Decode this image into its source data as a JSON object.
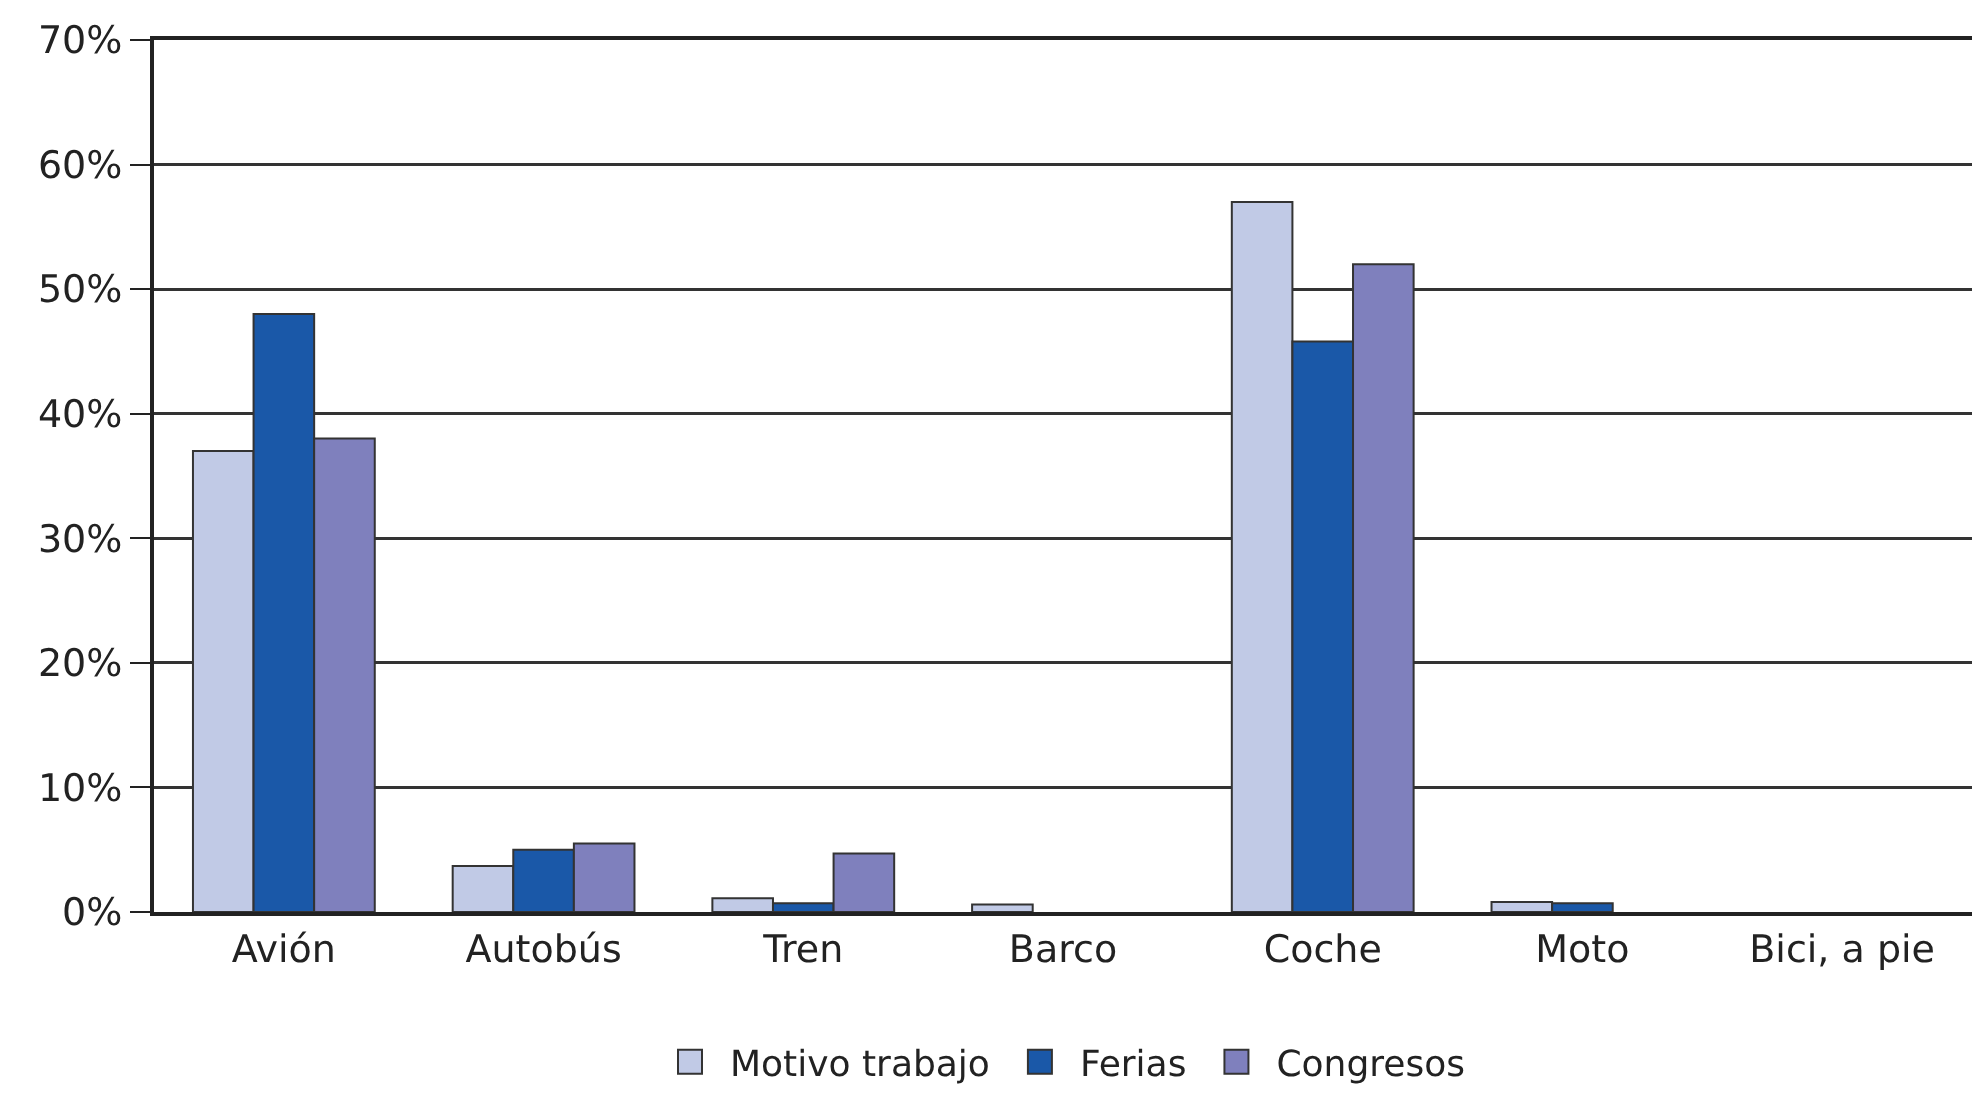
{
  "chart_data": {
    "type": "bar",
    "categories": [
      "Avión",
      "Autobús",
      "Tren",
      "Barco",
      "Coche",
      "Moto",
      "Bici, a pie"
    ],
    "series": [
      {
        "name": "Motivo trabajo",
        "color": "#c1cae6",
        "values": [
          37,
          3.7,
          1.1,
          0.6,
          57,
          0.8,
          0
        ]
      },
      {
        "name": "Ferias",
        "color": "#1a58a8",
        "values": [
          48,
          5,
          0.7,
          0,
          45.8,
          0.7,
          0
        ]
      },
      {
        "name": "Congresos",
        "color": "#7f80bd",
        "values": [
          38,
          5.5,
          4.7,
          0,
          52,
          0,
          0
        ]
      }
    ],
    "ylim": [
      0,
      70
    ],
    "yticks": [
      {
        "value": 0,
        "label": "0%"
      },
      {
        "value": 10,
        "label": "10%"
      },
      {
        "value": 20,
        "label": "20%"
      },
      {
        "value": 30,
        "label": "30%"
      },
      {
        "value": 40,
        "label": "40%"
      },
      {
        "value": 50,
        "label": "50%"
      },
      {
        "value": 60,
        "label": "60%"
      },
      {
        "value": 70,
        "label": "70%"
      }
    ],
    "grid": "y",
    "legend": "bottom"
  }
}
